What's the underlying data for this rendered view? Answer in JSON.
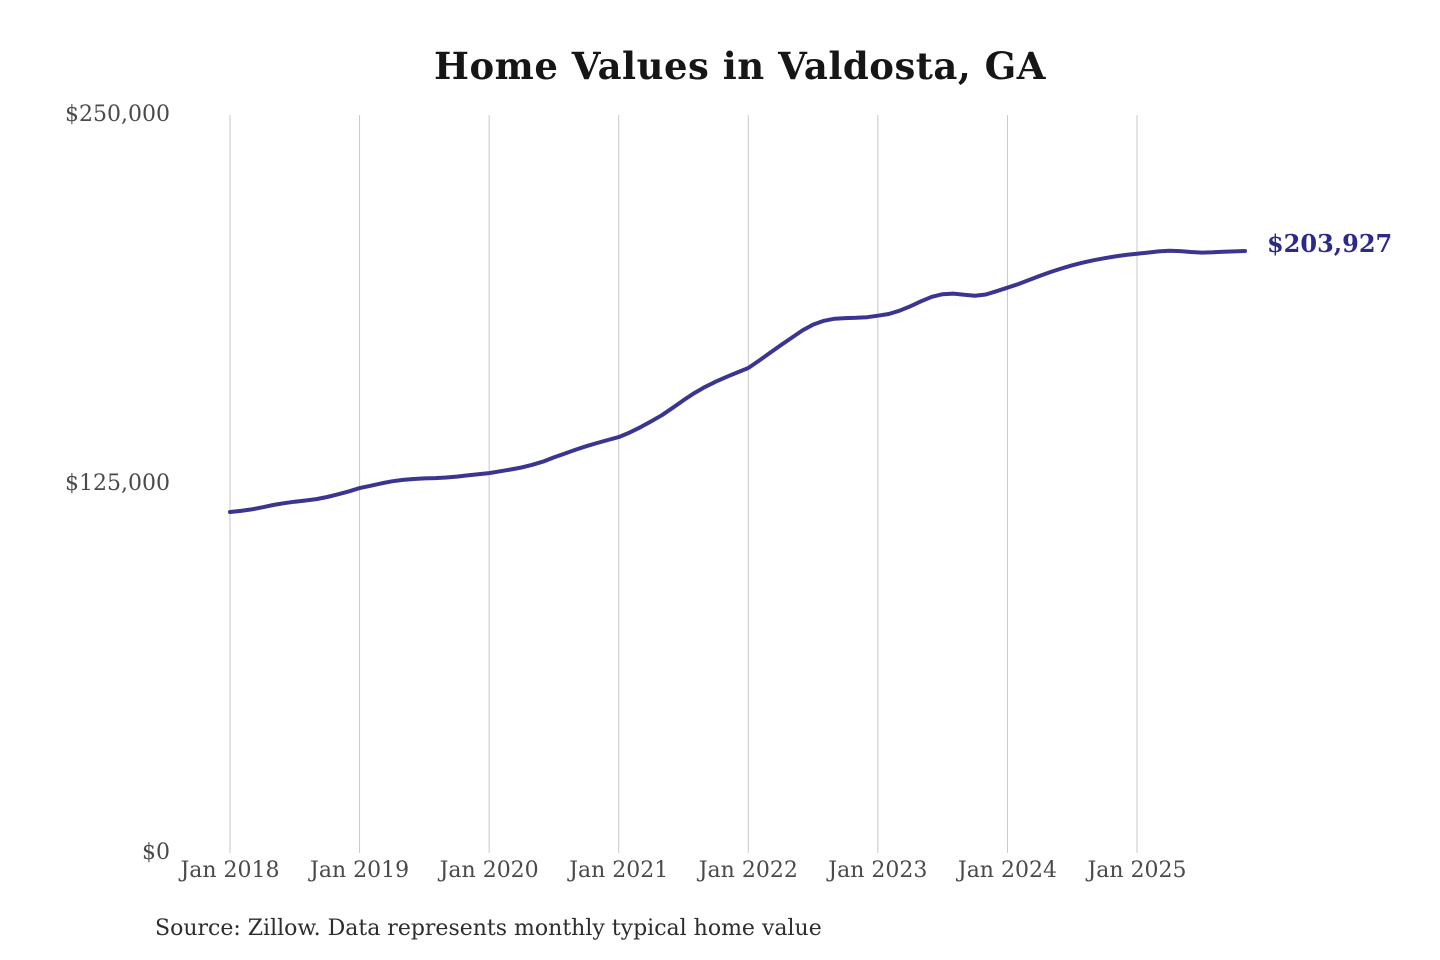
{
  "title": "Home Values in Valdosta, GA",
  "source_note": "Source: Zillow. Data represents monthly typical home value",
  "end_label": "$203,927",
  "colors": {
    "line": "#3a3590",
    "end_label": "#2c2a85",
    "grid": "#c9c9c9",
    "title": "#161616",
    "axis_label": "#4a4a4a",
    "source": "#2d2d2d"
  },
  "chart_data": {
    "type": "line",
    "title": "Home Values in Valdosta, GA",
    "xlabel": "",
    "ylabel": "",
    "ylim": [
      0,
      250000
    ],
    "grid": "vertical-only",
    "legend": "none",
    "x_ticks": [
      "Jan 2018",
      "Jan 2019",
      "Jan 2020",
      "Jan 2021",
      "Jan 2022",
      "Jan 2023",
      "Jan 2024",
      "Jan 2025"
    ],
    "y_ticks": [
      {
        "label": "$250,000",
        "value": 250000
      },
      {
        "label": "$125,000",
        "value": 125000
      },
      {
        "label": "$0",
        "value": 0
      }
    ],
    "x_start_month": "2018-01",
    "x_frequency": "monthly",
    "end_value": 203927,
    "series": [
      {
        "name": "Typical home value",
        "values": [
          115500,
          115900,
          116400,
          117100,
          117900,
          118500,
          119000,
          119400,
          119900,
          120600,
          121500,
          122500,
          123600,
          124400,
          125200,
          125900,
          126400,
          126700,
          126900,
          127000,
          127200,
          127500,
          127900,
          128300,
          128700,
          129300,
          129900,
          130600,
          131500,
          132600,
          134000,
          135300,
          136600,
          137800,
          138900,
          139900,
          140900,
          142400,
          144200,
          146200,
          148300,
          150800,
          153400,
          155800,
          157900,
          159700,
          161300,
          162800,
          164300,
          166800,
          169400,
          172000,
          174500,
          177000,
          179000,
          180300,
          181000,
          181200,
          181300,
          181500,
          182000,
          182600,
          183700,
          185200,
          186900,
          188400,
          189300,
          189500,
          189100,
          188800,
          189200,
          190300,
          191500,
          192700,
          194100,
          195500,
          196800,
          198000,
          199100,
          200000,
          200800,
          201500,
          202100,
          202600,
          203000,
          203400,
          203800,
          204000,
          203900,
          203600,
          203400,
          203500,
          203700,
          203800,
          203927
        ]
      }
    ]
  }
}
